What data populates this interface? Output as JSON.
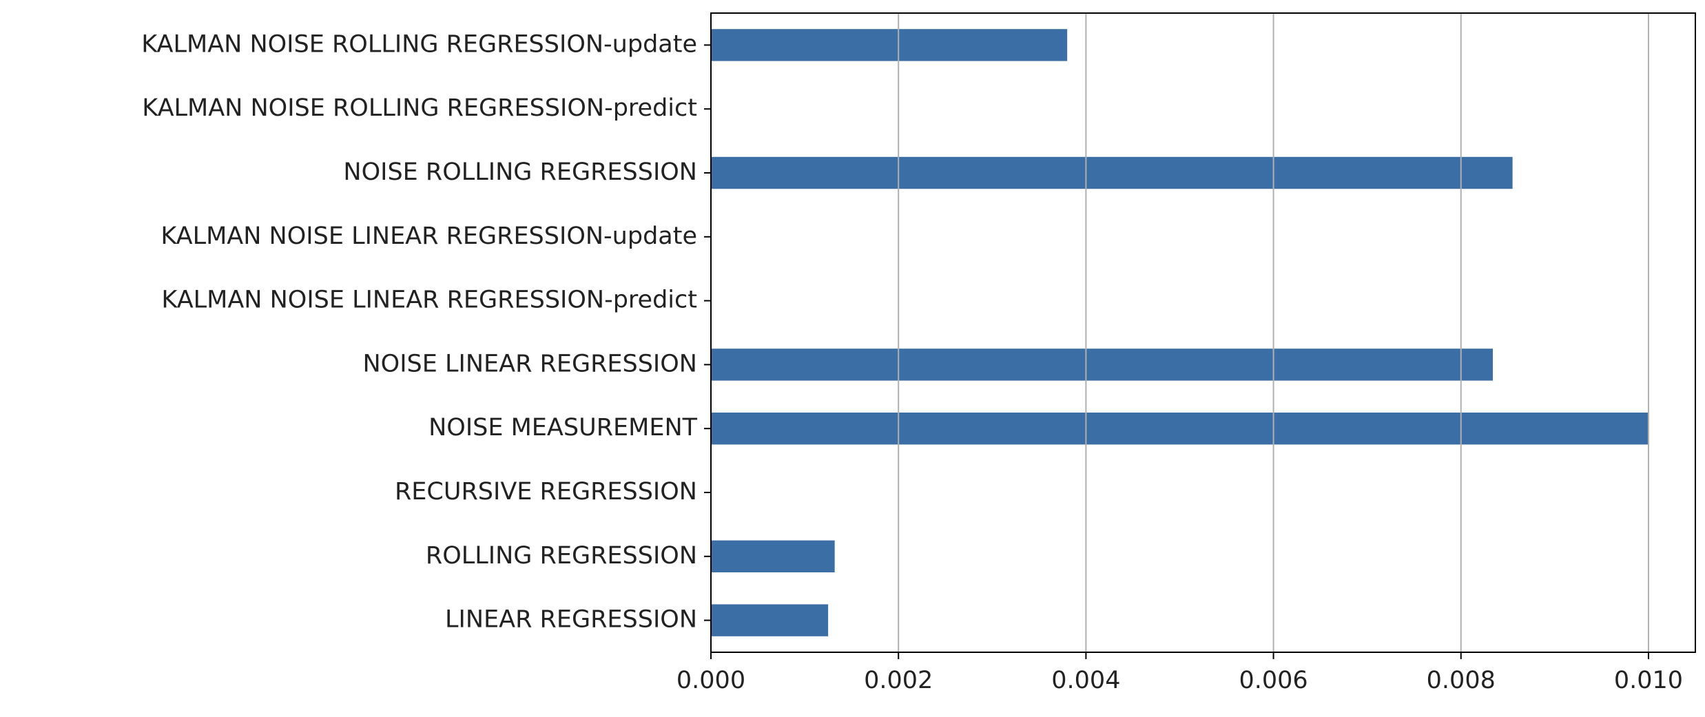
{
  "chart_data": {
    "type": "barh",
    "categories": [
      "LINEAR REGRESSION",
      "ROLLING REGRESSION",
      "RECURSIVE REGRESSION",
      "NOISE MEASUREMENT",
      "NOISE LINEAR REGRESSION",
      "KALMAN NOISE LINEAR REGRESSION-predict",
      "KALMAN NOISE LINEAR REGRESSION-update",
      "NOISE ROLLING REGRESSION",
      "KALMAN NOISE ROLLING REGRESSION-predict",
      "KALMAN NOISE ROLLING REGRESSION-update"
    ],
    "values": [
      0.00125,
      0.00132,
      0,
      0.01,
      0.00834,
      0,
      0,
      0.00855,
      0,
      0.0038
    ],
    "color": "#3a6ea5",
    "xlim": [
      0,
      0.0105
    ],
    "xticks": [
      {
        "value": 0,
        "label": "0.000"
      },
      {
        "value": 0.002,
        "label": "0.002"
      },
      {
        "value": 0.004,
        "label": "0.004"
      },
      {
        "value": 0.006,
        "label": "0.006"
      },
      {
        "value": 0.008,
        "label": "0.008"
      },
      {
        "value": 0.01,
        "label": "0.010"
      }
    ],
    "grid": true
  }
}
